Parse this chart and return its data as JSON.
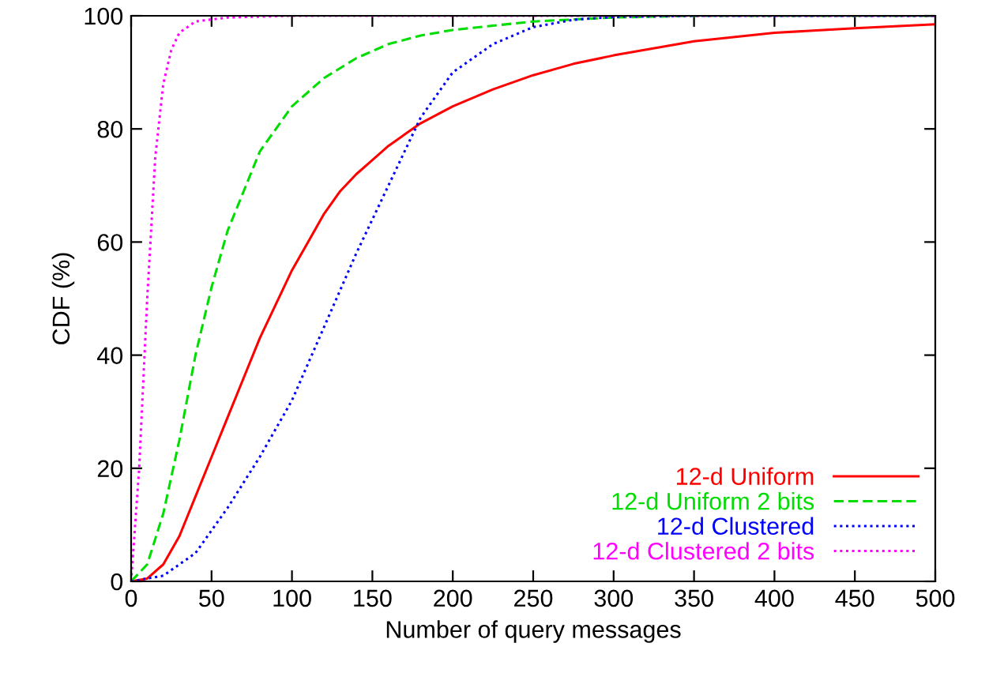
{
  "chart_data": {
    "type": "line",
    "xlabel": "Number of query messages",
    "ylabel": "CDF (%)",
    "xlim": [
      0,
      500
    ],
    "ylim": [
      0,
      100
    ],
    "xticks": [
      0,
      50,
      100,
      150,
      200,
      250,
      300,
      350,
      400,
      450,
      500
    ],
    "yticks": [
      0,
      20,
      40,
      60,
      80,
      100
    ],
    "grid": false,
    "legend": "bottom right",
    "marker": "none",
    "series": [
      {
        "name": "12-d Uniform",
        "color": "#ff0000",
        "line_style": "solid",
        "x": [
          0,
          10,
          20,
          30,
          40,
          50,
          60,
          70,
          80,
          90,
          100,
          110,
          120,
          130,
          140,
          150,
          160,
          170,
          180,
          200,
          225,
          250,
          275,
          300,
          350,
          400,
          450,
          500
        ],
        "values": [
          0,
          0.5,
          3,
          8,
          15,
          22,
          29,
          36,
          43,
          49,
          55,
          60,
          65,
          69,
          72,
          74.5,
          77,
          79,
          81,
          84,
          87,
          89.5,
          91.5,
          93,
          95.5,
          97,
          97.8,
          98.5
        ]
      },
      {
        "name": "12-d Uniform 2 bits",
        "color": "#00dd00",
        "line_style": "dashed",
        "x": [
          0,
          10,
          20,
          30,
          40,
          50,
          60,
          70,
          80,
          100,
          120,
          140,
          160,
          180,
          200,
          250,
          300,
          350,
          500
        ],
        "values": [
          0,
          3,
          12,
          25,
          40,
          52,
          62,
          69,
          76,
          84,
          89,
          92.5,
          95,
          96.5,
          97.5,
          99,
          99.7,
          100,
          100
        ]
      },
      {
        "name": "12-d Clustered",
        "color": "#0000ff",
        "line_style": "dotted",
        "x": [
          0,
          20,
          40,
          60,
          80,
          100,
          120,
          140,
          160,
          180,
          200,
          225,
          250,
          275,
          300,
          350,
          500
        ],
        "values": [
          0,
          1,
          5,
          13,
          22,
          32,
          45,
          58,
          70,
          82,
          90,
          95,
          98,
          99.3,
          99.8,
          100,
          100
        ]
      },
      {
        "name": "12-d Clustered 2 bits",
        "color": "#ff00ff",
        "line_style": "dotted",
        "x": [
          0,
          5,
          10,
          15,
          20,
          25,
          30,
          40,
          60,
          100,
          500
        ],
        "values": [
          0,
          20,
          50,
          75,
          88,
          94,
          97,
          99,
          99.7,
          100,
          100
        ]
      }
    ]
  }
}
